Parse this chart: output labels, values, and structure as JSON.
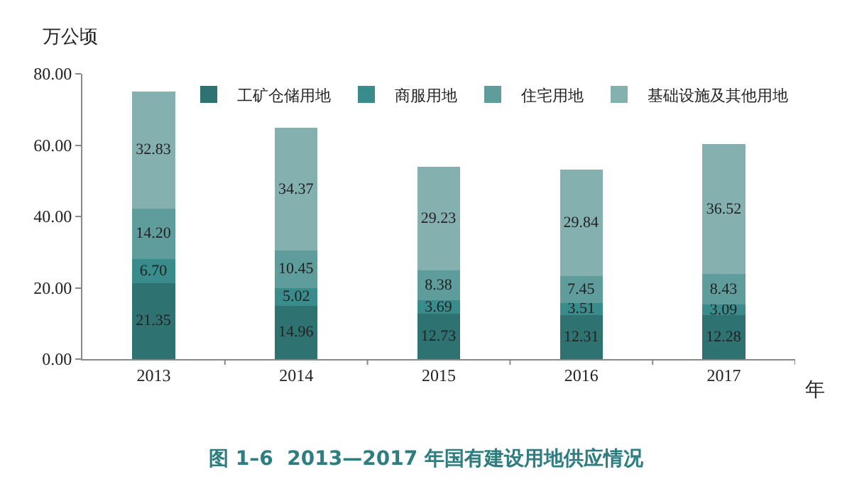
{
  "chart_data": {
    "type": "bar",
    "stacked": true,
    "title": "图 1–6  2013—2017 年国有建设用地供应情况",
    "ylabel": "万公顷",
    "xlabel": "年",
    "categories": [
      "2013",
      "2014",
      "2015",
      "2016",
      "2017"
    ],
    "series": [
      {
        "name": "工矿仓储用地",
        "color": "#2e7372",
        "values": [
          21.35,
          14.96,
          12.73,
          12.31,
          12.28
        ],
        "value_labels": [
          "21.35",
          "14.96",
          "12.73",
          "12.31",
          "12.28"
        ]
      },
      {
        "name": "商服用地",
        "color": "#3a8b8b",
        "values": [
          6.7,
          5.02,
          3.69,
          3.51,
          3.09
        ],
        "value_labels": [
          "6.70",
          "5.02",
          "3.69",
          "3.51",
          "3.09"
        ]
      },
      {
        "name": "住宅用地",
        "color": "#5f9c9c",
        "values": [
          14.2,
          10.45,
          8.38,
          7.45,
          8.43
        ],
        "value_labels": [
          "14.20",
          "10.45",
          "8.38",
          "7.45",
          "8.43"
        ]
      },
      {
        "name": "基础设施及其他用地",
        "color": "#84b0b0",
        "values": [
          32.83,
          34.37,
          29.23,
          29.84,
          36.52
        ],
        "value_labels": [
          "32.83",
          "34.37",
          "29.23",
          "29.84",
          "36.52"
        ]
      }
    ],
    "ylim": [
      0,
      80
    ],
    "yticks": [
      {
        "value": 0,
        "label": "0.00"
      },
      {
        "value": 20,
        "label": "20.00"
      },
      {
        "value": 40,
        "label": "40.00"
      },
      {
        "value": 60,
        "label": "60.00"
      },
      {
        "value": 80,
        "label": "80.00"
      }
    ],
    "legend": "top"
  }
}
